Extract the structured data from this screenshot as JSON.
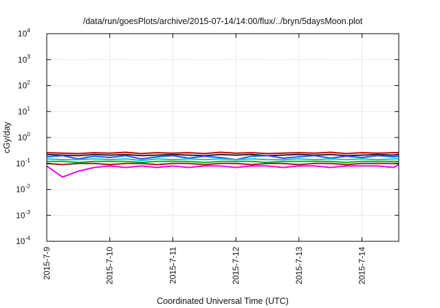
{
  "chart_data": {
    "type": "line",
    "title": "/data/run/goesPlots/archive/2015-07-14/14:00/flux/../bryn/5daysMoon.plot",
    "xlabel": "Coordinated Universal Time (UTC)",
    "ylabel": "cGy/day",
    "y_scale": "log",
    "ylim": [
      0.0001,
      10000
    ],
    "y_ticks": [
      {
        "base": "10",
        "exp": "-4"
      },
      {
        "base": "10",
        "exp": "-3"
      },
      {
        "base": "10",
        "exp": "-2"
      },
      {
        "base": "10",
        "exp": "-1"
      },
      {
        "base": "10",
        "exp": "0"
      },
      {
        "base": "10",
        "exp": "1"
      },
      {
        "base": "10",
        "exp": "2"
      },
      {
        "base": "10",
        "exp": "3"
      },
      {
        "base": "10",
        "exp": "4"
      }
    ],
    "xlim": [
      "2015-07-09",
      "2015-07-14 14:00"
    ],
    "x_ticks": [
      "2015-7-9",
      "2015-7-10",
      "2015-7-11",
      "2015-7-12",
      "2015-7-13",
      "2015-7-14"
    ],
    "grid": true,
    "x": [
      "2015-07-09 00:00",
      "2015-07-09 06:00",
      "2015-07-09 12:00",
      "2015-07-09 18:00",
      "2015-07-10 00:00",
      "2015-07-10 06:00",
      "2015-07-10 12:00",
      "2015-07-10 18:00",
      "2015-07-11 00:00",
      "2015-07-11 06:00",
      "2015-07-11 12:00",
      "2015-07-11 18:00",
      "2015-07-12 00:00",
      "2015-07-12 06:00",
      "2015-07-12 12:00",
      "2015-07-12 18:00",
      "2015-07-13 00:00",
      "2015-07-13 06:00",
      "2015-07-13 12:00",
      "2015-07-13 18:00",
      "2015-07-14 00:00",
      "2015-07-14 06:00",
      "2015-07-14 12:00",
      "2015-07-14 14:00"
    ],
    "series": [
      {
        "color": "#cc0000",
        "values": [
          0.26,
          0.25,
          0.24,
          0.26,
          0.25,
          0.27,
          0.24,
          0.26,
          0.25,
          0.26,
          0.24,
          0.27,
          0.25,
          0.26,
          0.24,
          0.25,
          0.26,
          0.25,
          0.27,
          0.24,
          0.26,
          0.25,
          0.26,
          0.26
        ]
      },
      {
        "color": "#222222",
        "values": [
          0.22,
          0.21,
          0.2,
          0.22,
          0.21,
          0.22,
          0.2,
          0.21,
          0.22,
          0.21,
          0.2,
          0.22,
          0.21,
          0.22,
          0.2,
          0.21,
          0.22,
          0.21,
          0.22,
          0.2,
          0.21,
          0.22,
          0.21,
          0.22
        ]
      },
      {
        "color": "#2b4fff",
        "values": [
          0.18,
          0.2,
          0.15,
          0.19,
          0.17,
          0.2,
          0.15,
          0.18,
          0.2,
          0.16,
          0.19,
          0.17,
          0.14,
          0.19,
          0.2,
          0.16,
          0.18,
          0.2,
          0.16,
          0.19,
          0.17,
          0.2,
          0.18,
          0.19
        ]
      },
      {
        "color": "#00cccc",
        "values": [
          0.15,
          0.14,
          0.14,
          0.15,
          0.14,
          0.15,
          0.13,
          0.15,
          0.14,
          0.15,
          0.14,
          0.15,
          0.14,
          0.15,
          0.14,
          0.14,
          0.15,
          0.14,
          0.15,
          0.14,
          0.15,
          0.14,
          0.15,
          0.15
        ]
      },
      {
        "color": "#00bb00",
        "values": [
          0.12,
          0.12,
          0.11,
          0.12,
          0.12,
          0.12,
          0.11,
          0.12,
          0.12,
          0.12,
          0.11,
          0.12,
          0.12,
          0.12,
          0.11,
          0.12,
          0.12,
          0.12,
          0.12,
          0.11,
          0.12,
          0.12,
          0.12,
          0.12
        ]
      },
      {
        "color": "#ee00ee",
        "values": [
          0.08,
          0.03,
          0.05,
          0.07,
          0.08,
          0.07,
          0.08,
          0.07,
          0.08,
          0.07,
          0.08,
          0.08,
          0.07,
          0.08,
          0.08,
          0.07,
          0.08,
          0.08,
          0.07,
          0.08,
          0.08,
          0.08,
          0.07,
          0.09
        ]
      },
      {
        "color": "#aa1133",
        "values": [
          0.1,
          0.09,
          0.1,
          0.1,
          0.09,
          0.1,
          0.1,
          0.09,
          0.1,
          0.1,
          0.09,
          0.1,
          0.1,
          0.09,
          0.1,
          0.1,
          0.09,
          0.1,
          0.1,
          0.09,
          0.1,
          0.1,
          0.1,
          0.1
        ]
      }
    ]
  }
}
